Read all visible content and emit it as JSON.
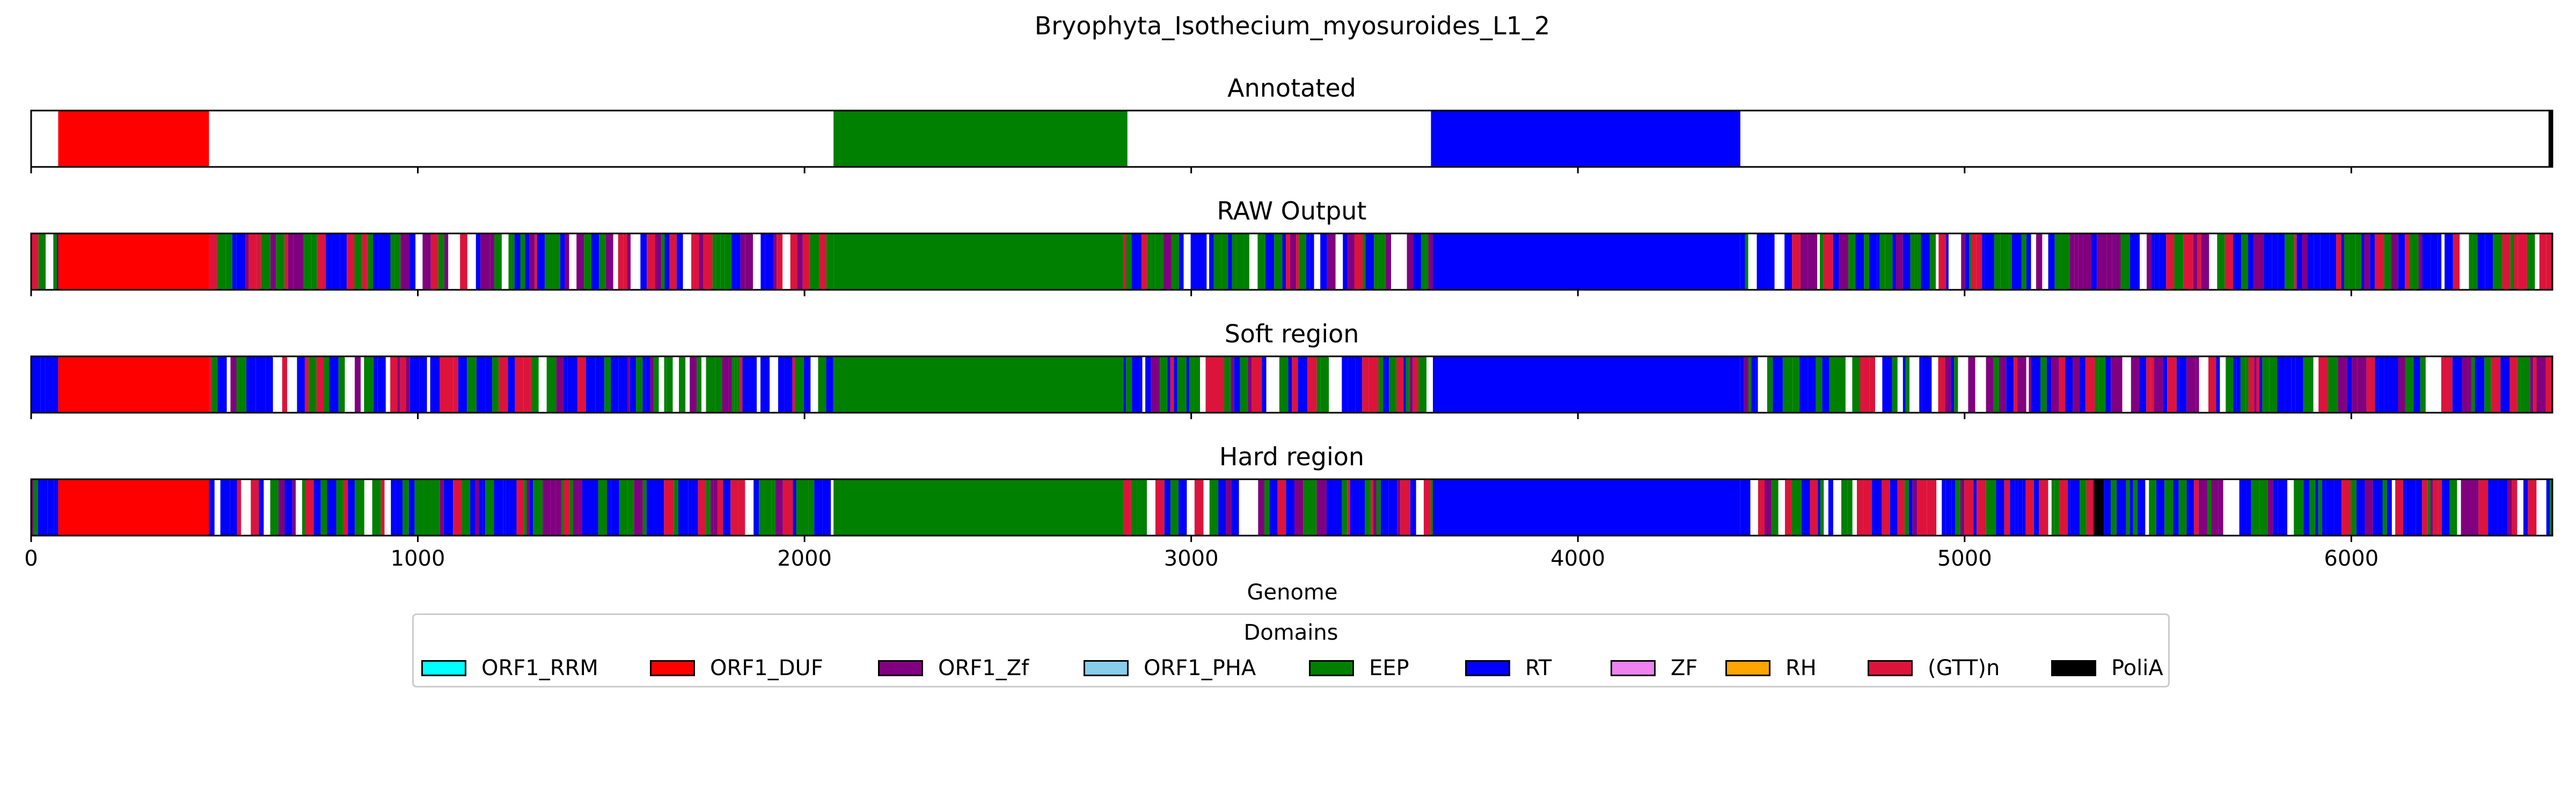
{
  "chart_data": {
    "type": "bar",
    "title": "Bryophyta_Isothecium_myosuroides_L1_2",
    "xlabel": "Genome",
    "xlim": [
      0,
      6520
    ],
    "xticks": [
      0,
      1000,
      2000,
      3000,
      4000,
      5000,
      6000
    ],
    "xtick_labels": [
      "0",
      "1000",
      "2000",
      "3000",
      "4000",
      "5000",
      "6000"
    ],
    "legend_title": "Domains",
    "legend": [
      {
        "name": "ORF1_RRM",
        "color": "#00ffff"
      },
      {
        "name": "ORF1_DUF",
        "color": "#ff0000"
      },
      {
        "name": "ORF1_Zf",
        "color": "#800080"
      },
      {
        "name": "ORF1_PHA",
        "color": "#87ceeb"
      },
      {
        "name": "EEP",
        "color": "#008000"
      },
      {
        "name": "RT",
        "color": "#0000ff"
      },
      {
        "name": "ZF",
        "color": "#ee82ee"
      },
      {
        "name": "RH",
        "color": "#ffa500"
      },
      {
        "name": "(GTT)n",
        "color": "#dc143c"
      },
      {
        "name": "PoliA",
        "color": "#000000"
      }
    ],
    "panels": [
      {
        "title": "Annotated",
        "segments": [
          {
            "start": 70,
            "end": 460,
            "domain": "ORF1_DUF"
          },
          {
            "start": 2075,
            "end": 2835,
            "domain": "EEP"
          },
          {
            "start": 3620,
            "end": 4420,
            "domain": "RT"
          },
          {
            "start": 6510,
            "end": 6520,
            "domain": "PoliA"
          }
        ],
        "noise_ranges": []
      },
      {
        "title": "RAW Output",
        "segments": [
          {
            "start": 70,
            "end": 460,
            "domain": "ORF1_DUF"
          },
          {
            "start": 2075,
            "end": 2825,
            "domain": "EEP"
          },
          {
            "start": 3625,
            "end": 4420,
            "domain": "RT"
          }
        ],
        "noise_ranges": [
          [
            0,
            70
          ],
          [
            460,
            2075
          ],
          [
            2825,
            3625
          ],
          [
            4420,
            6520
          ]
        ]
      },
      {
        "title": "Soft region",
        "segments": [
          {
            "start": 70,
            "end": 460,
            "domain": "ORF1_DUF"
          },
          {
            "start": 2075,
            "end": 2825,
            "domain": "EEP"
          },
          {
            "start": 3625,
            "end": 4420,
            "domain": "RT"
          }
        ],
        "noise_ranges": [
          [
            0,
            70
          ],
          [
            460,
            2075
          ],
          [
            2825,
            3625
          ],
          [
            4420,
            6520
          ]
        ]
      },
      {
        "title": "Hard region",
        "segments": [
          {
            "start": 70,
            "end": 460,
            "domain": "ORF1_DUF"
          },
          {
            "start": 2075,
            "end": 2825,
            "domain": "EEP"
          },
          {
            "start": 3625,
            "end": 4420,
            "domain": "RT"
          },
          {
            "start": 5335,
            "end": 5360,
            "domain": "PoliA"
          }
        ],
        "noise_ranges": [
          [
            0,
            70
          ],
          [
            460,
            2075
          ],
          [
            2825,
            3625
          ],
          [
            4420,
            5335
          ],
          [
            5360,
            6520
          ]
        ]
      }
    ]
  }
}
